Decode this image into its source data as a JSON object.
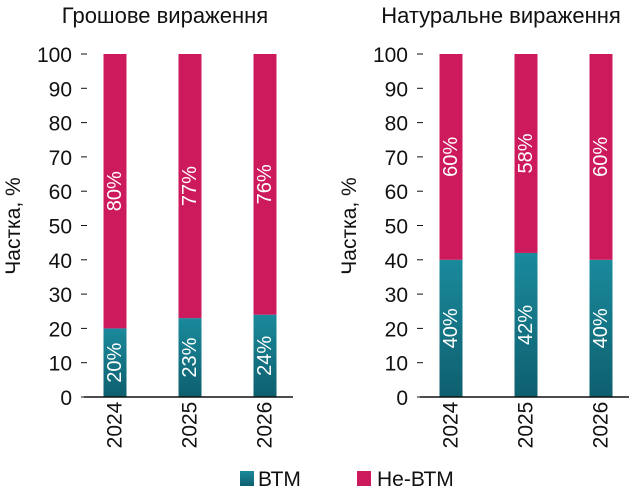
{
  "colors": {
    "btm": "#1a8a9c",
    "btm_dark": "#0e5f6e",
    "non_btm": "#cc1a5c",
    "text": "#111111"
  },
  "legend": {
    "items": [
      {
        "label": "ВТМ",
        "color": "#1a8a9c"
      },
      {
        "label": "Не-ВТМ",
        "color": "#cc1a5c"
      }
    ]
  },
  "chart_data": [
    {
      "type": "bar",
      "stacked": true,
      "title": "Грошове вираження",
      "ylabel": "Частка, %",
      "xlabel": "",
      "ylim": [
        0,
        100
      ],
      "yticks": [
        0,
        10,
        20,
        30,
        40,
        50,
        60,
        70,
        80,
        90,
        100
      ],
      "categories": [
        "2024",
        "2025",
        "2026"
      ],
      "series": [
        {
          "name": "ВТМ",
          "values": [
            20,
            23,
            24
          ],
          "labels": [
            "20%",
            "23%",
            "24%"
          ]
        },
        {
          "name": "Не-ВТМ",
          "values": [
            80,
            77,
            76
          ],
          "labels": [
            "80%",
            "77%",
            "76%"
          ]
        }
      ]
    },
    {
      "type": "bar",
      "stacked": true,
      "title": "Натуральне вираження",
      "ylabel": "Частка, %",
      "xlabel": "",
      "ylim": [
        0,
        100
      ],
      "yticks": [
        0,
        10,
        20,
        30,
        40,
        50,
        60,
        70,
        80,
        90,
        100
      ],
      "categories": [
        "2024",
        "2025",
        "2026"
      ],
      "series": [
        {
          "name": "ВТМ",
          "values": [
            40,
            42,
            40
          ],
          "labels": [
            "40%",
            "42%",
            "40%"
          ]
        },
        {
          "name": "Не-ВТМ",
          "values": [
            60,
            58,
            60
          ],
          "labels": [
            "60%",
            "58%",
            "60%"
          ]
        }
      ]
    }
  ]
}
